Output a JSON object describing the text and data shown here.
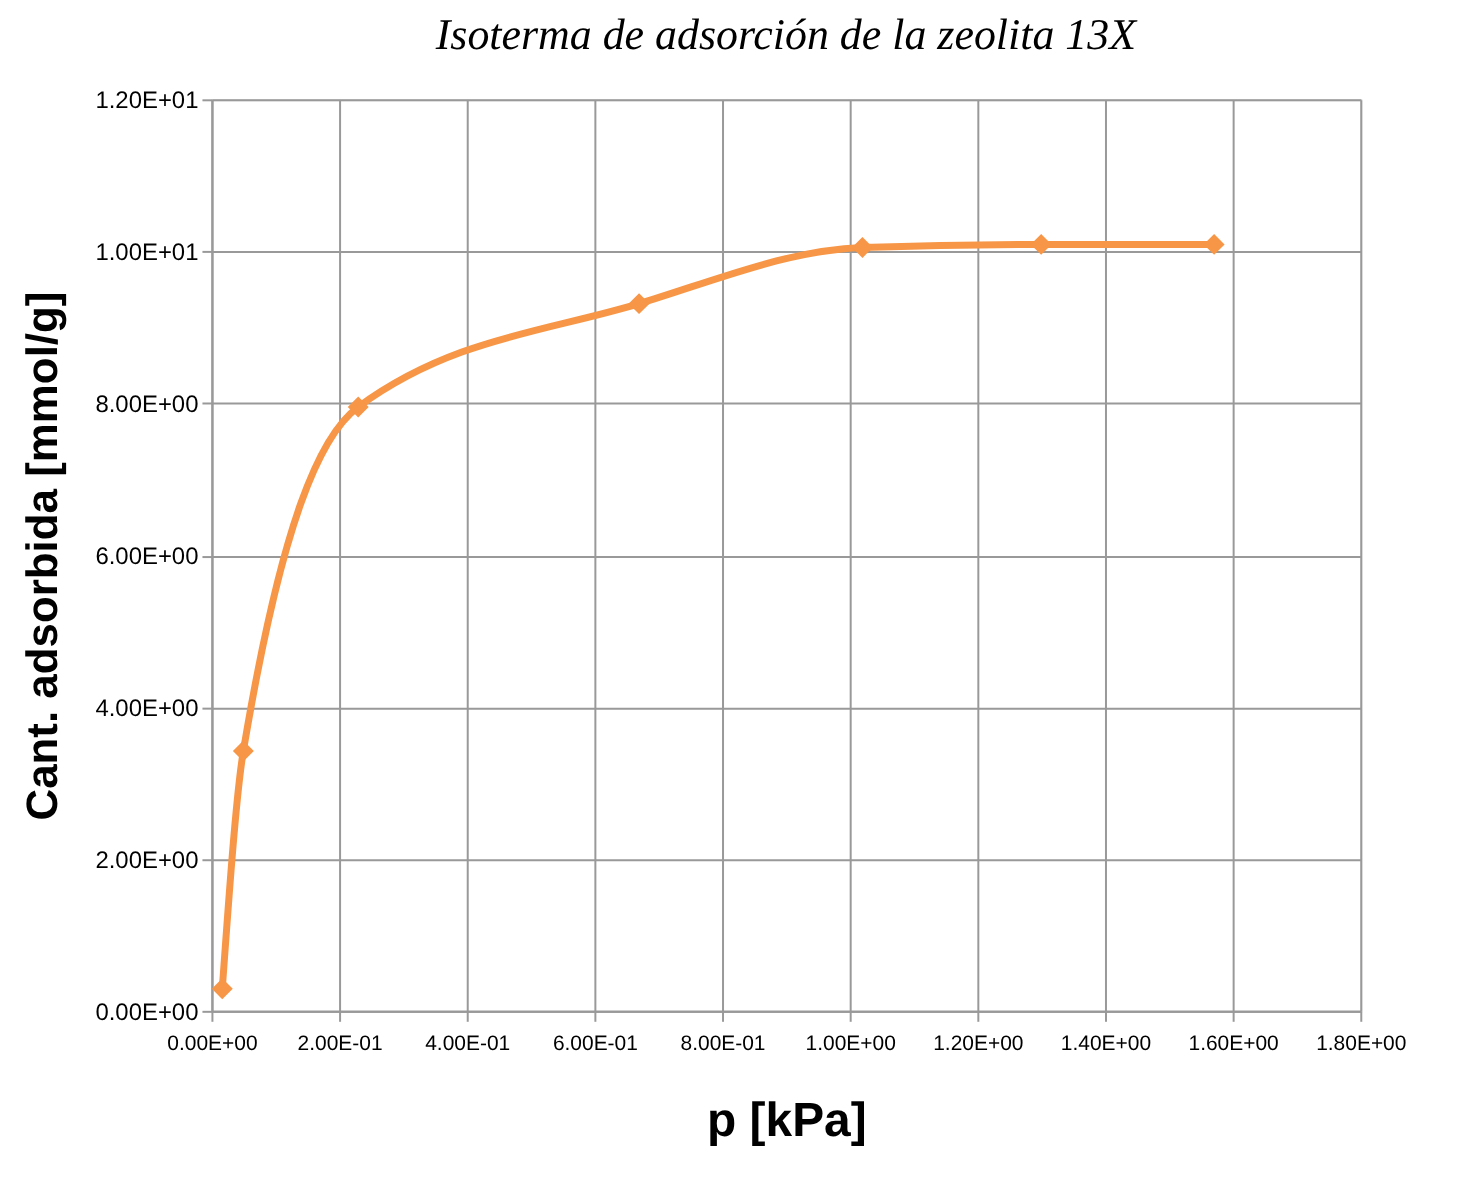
{
  "chart_data": {
    "type": "line",
    "title": "Isoterma de adsorción de la  zeolita 13X",
    "xlabel": "p [kPa]",
    "ylabel": "Cant. adsorbida [mmol/g]",
    "x": [
      0.017,
      0.05,
      0.23,
      0.67,
      1.02,
      1.3,
      1.571
    ],
    "series": [
      {
        "color": "#f79646",
        "values": [
          0.29,
          3.42,
          7.95,
          9.31,
          10.05,
          10.09,
          10.09
        ]
      }
    ],
    "marker": "diamond",
    "line_style": "solid",
    "grid": true,
    "xlim": [
      0,
      1.8
    ],
    "ylim": [
      0,
      12
    ],
    "xticks": [
      {
        "value": 0,
        "label": "0.00E+00"
      },
      {
        "value": 0.2,
        "label": "2.00E-01"
      },
      {
        "value": 0.4,
        "label": "4.00E-01"
      },
      {
        "value": 0.6,
        "label": "6.00E-01"
      },
      {
        "value": 0.8,
        "label": "8.00E-01"
      },
      {
        "value": 1.0,
        "label": "1.00E+00"
      },
      {
        "value": 1.2,
        "label": "1.20E+00"
      },
      {
        "value": 1.4,
        "label": "1.40E+00"
      },
      {
        "value": 1.6,
        "label": "1.60E+00"
      },
      {
        "value": 1.8,
        "label": "1.80E+00"
      }
    ],
    "yticks": [
      {
        "value": 0,
        "label": "0.00E+00"
      },
      {
        "value": 2,
        "label": "2.00E+00"
      },
      {
        "value": 4,
        "label": "4.00E+00"
      },
      {
        "value": 6,
        "label": "6.00E+00"
      },
      {
        "value": 8,
        "label": "8.00E+00"
      },
      {
        "value": 10,
        "label": "1.00E+01"
      },
      {
        "value": 12,
        "label": "1.20E+01"
      }
    ]
  }
}
